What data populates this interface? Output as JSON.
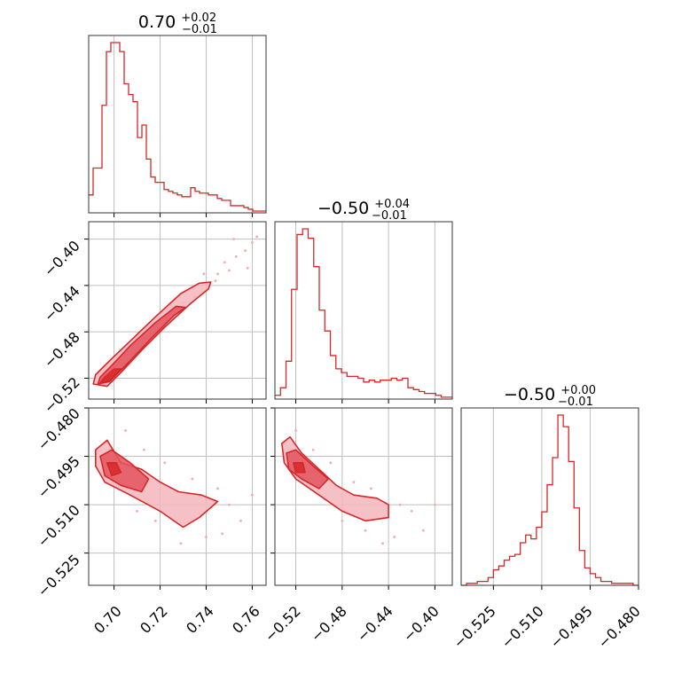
{
  "colors": {
    "series": "#d62728",
    "fill_inner": "#e3545e",
    "fill_outer": "#f4b6bc",
    "scatter": "#f4a9ae",
    "grid": "#bfbfbf"
  },
  "titles": {
    "p0": {
      "main": "0.70",
      "sup": "+0.02",
      "sub": "−0.01"
    },
    "p1": {
      "main": "−0.50",
      "sup": "+0.04",
      "sub": "−0.01"
    },
    "p2": {
      "main": "−0.50",
      "sup": "+0.00",
      "sub": "−0.01"
    }
  },
  "ticks": {
    "p0": [
      "0.70",
      "0.72",
      "0.74",
      "0.76"
    ],
    "p1": [
      "−0.52",
      "−0.48",
      "−0.44",
      "−0.40"
    ],
    "p2": [
      "−0.525",
      "−0.510",
      "−0.495",
      "−0.480"
    ]
  },
  "chart_data": [
    {
      "type": "histogram",
      "panel": "p0 marginal",
      "x_range": [
        0.689,
        0.766
      ],
      "x_ticks": [
        0.7,
        0.72,
        0.74,
        0.76
      ],
      "median": 0.7,
      "err_plus": 0.02,
      "err_minus": 0.01,
      "bins_per_unit": 0,
      "counts": [
        0.1,
        0.25,
        0.25,
        0.6,
        0.9,
        0.95,
        0.95,
        0.9,
        0.72,
        0.66,
        0.62,
        0.42,
        0.49,
        0.3,
        0.2,
        0.17,
        0.17,
        0.13,
        0.12,
        0.11,
        0.1,
        0.09,
        0.09,
        0.14,
        0.12,
        0.11,
        0.11,
        0.1,
        0.1,
        0.08,
        0.07,
        0.07,
        0.04,
        0.04,
        0.04,
        0.03,
        0.02,
        0.01,
        0.01,
        0.01
      ]
    },
    {
      "type": "histogram",
      "panel": "p1 marginal",
      "x_range": [
        -0.538,
        -0.385
      ],
      "x_ticks": [
        -0.52,
        -0.48,
        -0.44,
        -0.4
      ],
      "median": -0.5,
      "err_plus": 0.04,
      "err_minus": 0.01,
      "counts": [
        0.02,
        0.06,
        0.2,
        0.58,
        0.87,
        0.9,
        0.85,
        0.7,
        0.47,
        0.36,
        0.23,
        0.16,
        0.14,
        0.12,
        0.12,
        0.11,
        0.09,
        0.1,
        0.09,
        0.1,
        0.1,
        0.11,
        0.1,
        0.11,
        0.06,
        0.05,
        0.04,
        0.03,
        0.03,
        0.02,
        0.01,
        0.01
      ]
    },
    {
      "type": "histogram",
      "panel": "p2 marginal",
      "x_range": [
        -0.535,
        -0.48
      ],
      "x_ticks": [
        -0.525,
        -0.51,
        -0.495,
        -0.48
      ],
      "median": -0.5,
      "err_plus": 0.0,
      "err_minus": 0.01,
      "counts": [
        0,
        0.01,
        0.01,
        0.02,
        0.02,
        0.04,
        0.08,
        0.1,
        0.13,
        0.15,
        0.16,
        0.22,
        0.26,
        0.24,
        0.3,
        0.38,
        0.52,
        0.66,
        0.88,
        0.82,
        0.64,
        0.4,
        0.18,
        0.09,
        0.06,
        0.04,
        0.02,
        0.02,
        0.01,
        0.01,
        0.01,
        0.01,
        0
      ]
    },
    {
      "type": "scatter",
      "panel": "p1 vs p0",
      "x_range": [
        0.689,
        0.766
      ],
      "y_range": [
        -0.538,
        -0.385
      ],
      "contours": [
        [
          [
            0.691,
            -0.525
          ],
          [
            0.697,
            -0.527
          ],
          [
            0.703,
            -0.515
          ],
          [
            0.712,
            -0.496
          ],
          [
            0.722,
            -0.476
          ],
          [
            0.733,
            -0.456
          ],
          [
            0.741,
            -0.443
          ],
          [
            0.742,
            -0.437
          ],
          [
            0.737,
            -0.438
          ],
          [
            0.729,
            -0.447
          ],
          [
            0.718,
            -0.467
          ],
          [
            0.707,
            -0.488
          ],
          [
            0.698,
            -0.505
          ],
          [
            0.692,
            -0.517
          ]
        ],
        [
          [
            0.693,
            -0.525
          ],
          [
            0.698,
            -0.523
          ],
          [
            0.706,
            -0.507
          ],
          [
            0.716,
            -0.486
          ],
          [
            0.726,
            -0.466
          ],
          [
            0.731,
            -0.459
          ],
          [
            0.727,
            -0.458
          ],
          [
            0.718,
            -0.472
          ],
          [
            0.707,
            -0.492
          ],
          [
            0.699,
            -0.509
          ],
          [
            0.694,
            -0.519
          ]
        ],
        [
          [
            0.694,
            -0.524
          ],
          [
            0.698,
            -0.522
          ],
          [
            0.703,
            -0.512
          ],
          [
            0.7,
            -0.512
          ],
          [
            0.696,
            -0.519
          ]
        ]
      ],
      "scatter": [
        [
          0.745,
          -0.43
        ],
        [
          0.748,
          -0.42
        ],
        [
          0.753,
          -0.415
        ],
        [
          0.757,
          -0.41
        ],
        [
          0.76,
          -0.403
        ],
        [
          0.744,
          -0.436
        ],
        [
          0.739,
          -0.43
        ],
        [
          0.75,
          -0.427
        ],
        [
          0.735,
          -0.45
        ],
        [
          0.73,
          -0.455
        ],
        [
          0.723,
          -0.47
        ],
        [
          0.716,
          -0.482
        ],
        [
          0.71,
          -0.494
        ],
        [
          0.752,
          -0.4
        ],
        [
          0.762,
          -0.398
        ],
        [
          0.758,
          -0.425
        ]
      ]
    },
    {
      "type": "scatter",
      "panel": "p2 vs p0",
      "x_range": [
        0.689,
        0.766
      ],
      "y_range": [
        -0.535,
        -0.48
      ],
      "contours": [
        [
          [
            0.692,
            -0.493
          ],
          [
            0.697,
            -0.49
          ],
          [
            0.703,
            -0.497
          ],
          [
            0.712,
            -0.499
          ],
          [
            0.72,
            -0.503
          ],
          [
            0.728,
            -0.506
          ],
          [
            0.738,
            -0.507
          ],
          [
            0.745,
            -0.509
          ],
          [
            0.737,
            -0.514
          ],
          [
            0.73,
            -0.517
          ],
          [
            0.72,
            -0.512
          ],
          [
            0.707,
            -0.507
          ],
          [
            0.696,
            -0.503
          ],
          [
            0.692,
            -0.498
          ]
        ],
        [
          [
            0.694,
            -0.495
          ],
          [
            0.699,
            -0.493
          ],
          [
            0.707,
            -0.497
          ],
          [
            0.715,
            -0.502
          ],
          [
            0.712,
            -0.506
          ],
          [
            0.703,
            -0.504
          ],
          [
            0.696,
            -0.501
          ]
        ],
        [
          [
            0.697,
            -0.497
          ],
          [
            0.701,
            -0.497
          ],
          [
            0.703,
            -0.5
          ],
          [
            0.699,
            -0.501
          ]
        ]
      ],
      "scatter": [
        [
          0.705,
          -0.487
        ],
        [
          0.713,
          -0.493
        ],
        [
          0.722,
          -0.497
        ],
        [
          0.734,
          -0.502
        ],
        [
          0.745,
          -0.505
        ],
        [
          0.75,
          -0.51
        ],
        [
          0.755,
          -0.515
        ],
        [
          0.74,
          -0.52
        ],
        [
          0.729,
          -0.522
        ],
        [
          0.718,
          -0.515
        ],
        [
          0.71,
          -0.512
        ],
        [
          0.76,
          -0.507
        ],
        [
          0.747,
          -0.519
        ]
      ]
    },
    {
      "type": "scatter",
      "panel": "p2 vs p1",
      "x_range": [
        -0.538,
        -0.385
      ],
      "y_range": [
        -0.535,
        -0.48
      ],
      "contours": [
        [
          [
            -0.532,
            -0.491
          ],
          [
            -0.525,
            -0.489
          ],
          [
            -0.515,
            -0.494
          ],
          [
            -0.5,
            -0.499
          ],
          [
            -0.485,
            -0.504
          ],
          [
            -0.47,
            -0.507
          ],
          [
            -0.45,
            -0.508
          ],
          [
            -0.44,
            -0.51
          ],
          [
            -0.44,
            -0.514
          ],
          [
            -0.46,
            -0.515
          ],
          [
            -0.48,
            -0.512
          ],
          [
            -0.5,
            -0.507
          ],
          [
            -0.52,
            -0.502
          ],
          [
            -0.53,
            -0.497
          ]
        ],
        [
          [
            -0.528,
            -0.494
          ],
          [
            -0.52,
            -0.493
          ],
          [
            -0.505,
            -0.498
          ],
          [
            -0.492,
            -0.502
          ],
          [
            -0.5,
            -0.505
          ],
          [
            -0.515,
            -0.502
          ],
          [
            -0.526,
            -0.499
          ]
        ],
        [
          [
            -0.522,
            -0.497
          ],
          [
            -0.514,
            -0.497
          ],
          [
            -0.512,
            -0.5
          ],
          [
            -0.52,
            -0.5
          ]
        ]
      ],
      "scatter": [
        [
          -0.52,
          -0.487
        ],
        [
          -0.505,
          -0.493
        ],
        [
          -0.49,
          -0.497
        ],
        [
          -0.47,
          -0.503
        ],
        [
          -0.455,
          -0.505
        ],
        [
          -0.43,
          -0.51
        ],
        [
          -0.42,
          -0.512
        ],
        [
          -0.41,
          -0.518
        ],
        [
          -0.435,
          -0.52
        ],
        [
          -0.445,
          -0.522
        ],
        [
          -0.46,
          -0.518
        ],
        [
          -0.48,
          -0.515
        ],
        [
          -0.4,
          -0.51
        ]
      ]
    }
  ]
}
